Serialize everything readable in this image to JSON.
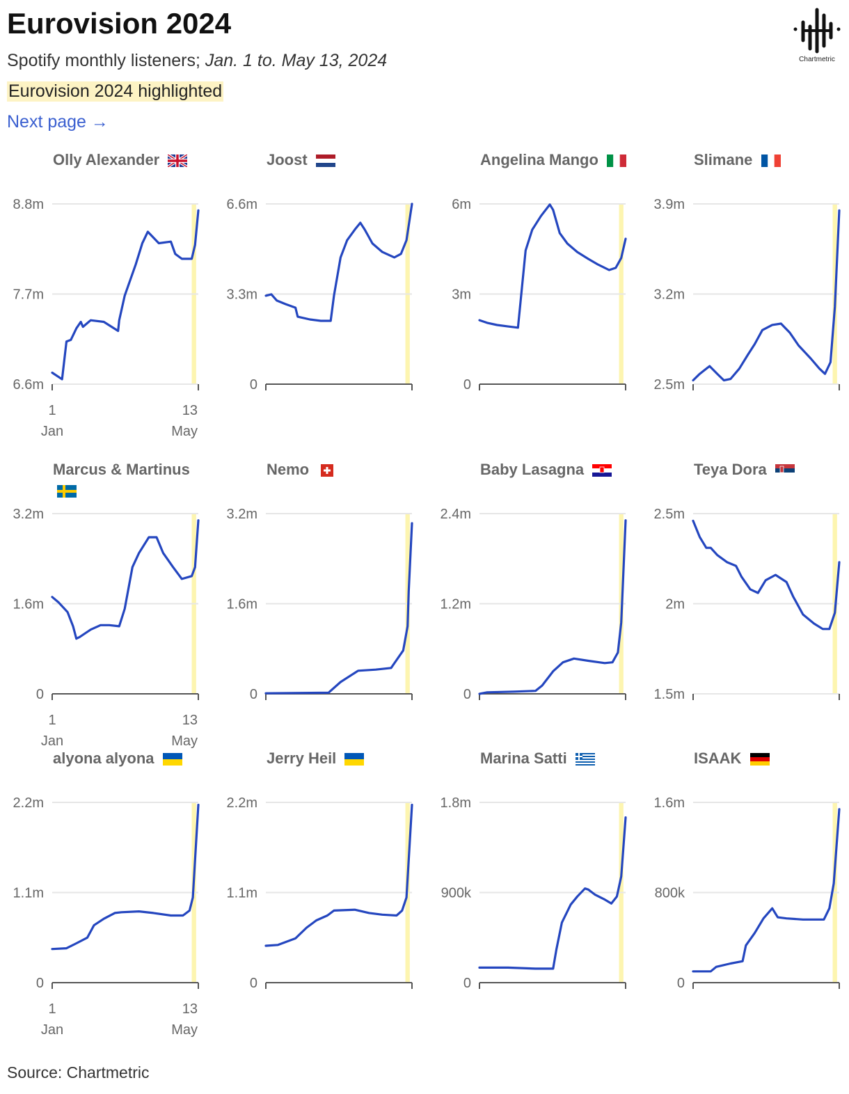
{
  "header": {
    "title": "Eurovision 2024",
    "subtitle_prefix": "Spotify monthly listeners;",
    "subtitle_dates": "Jan. 1 to. May 13, 2024",
    "highlight_note": "Eurovision 2024 highlighted",
    "next_page": "Next page →"
  },
  "logo": {
    "text": "Chartmetric",
    "icon": "chartmetric-waveform-logo"
  },
  "footer": {
    "source": "Source: Chartmetric"
  },
  "colors": {
    "line": "#2446bf",
    "highlight": "#fdf5b0",
    "grid": "#e6e6e6",
    "axis": "#555555",
    "title": "#666666"
  },
  "chart_data": {
    "type": "line",
    "layout": "small-multiples 4 columns x 3 rows",
    "x_range": [
      "2024-01-01",
      "2024-05-13"
    ],
    "x_tick_labels": [
      {
        "day": "1",
        "month": "Jan"
      },
      {
        "day": "13",
        "month": "May"
      }
    ],
    "highlight_range": [
      "2024-05-07",
      "2024-05-11"
    ],
    "grid": true,
    "panels": [
      {
        "name": "Olly Alexander",
        "flag": "GB",
        "ylim": [
          6.6,
          8.8
        ],
        "yticks": [
          "6.6m",
          "7.7m",
          "8.8m"
        ],
        "points": [
          [
            "2024-01-01",
            6.74
          ],
          [
            "2024-01-10",
            6.66
          ],
          [
            "2024-01-14",
            7.12
          ],
          [
            "2024-01-18",
            7.14
          ],
          [
            "2024-01-23",
            7.28
          ],
          [
            "2024-01-27",
            7.36
          ],
          [
            "2024-01-29",
            7.3
          ],
          [
            "2024-02-05",
            7.38
          ],
          [
            "2024-02-17",
            7.36
          ],
          [
            "2024-03-01",
            7.25
          ],
          [
            "2024-03-02",
            7.38
          ],
          [
            "2024-03-07",
            7.68
          ],
          [
            "2024-03-17",
            8.06
          ],
          [
            "2024-03-23",
            8.32
          ],
          [
            "2024-03-28",
            8.46
          ],
          [
            "2024-04-07",
            8.32
          ],
          [
            "2024-04-18",
            8.34
          ],
          [
            "2024-04-22",
            8.19
          ],
          [
            "2024-04-28",
            8.13
          ],
          [
            "2024-05-07",
            8.13
          ],
          [
            "2024-05-10",
            8.3
          ],
          [
            "2024-05-13",
            8.72
          ]
        ]
      },
      {
        "name": "Joost",
        "flag": "NL",
        "ylim": [
          0,
          6.6
        ],
        "yticks": [
          "0",
          "3.3m",
          "6.6m"
        ],
        "points": [
          [
            "2024-01-01",
            3.24
          ],
          [
            "2024-01-06",
            3.29
          ],
          [
            "2024-01-11",
            3.06
          ],
          [
            "2024-01-19",
            2.93
          ],
          [
            "2024-01-28",
            2.8
          ],
          [
            "2024-01-30",
            2.47
          ],
          [
            "2024-02-10",
            2.37
          ],
          [
            "2024-02-20",
            2.32
          ],
          [
            "2024-02-29",
            2.32
          ],
          [
            "2024-03-03",
            3.24
          ],
          [
            "2024-03-09",
            4.64
          ],
          [
            "2024-03-15",
            5.27
          ],
          [
            "2024-03-22",
            5.66
          ],
          [
            "2024-03-27",
            5.91
          ],
          [
            "2024-03-31",
            5.66
          ],
          [
            "2024-04-07",
            5.15
          ],
          [
            "2024-04-16",
            4.84
          ],
          [
            "2024-04-27",
            4.64
          ],
          [
            "2024-05-03",
            4.77
          ],
          [
            "2024-05-08",
            5.27
          ],
          [
            "2024-05-13",
            6.6
          ]
        ]
      },
      {
        "name": "Angelina Mango",
        "flag": "IT",
        "ylim": [
          0,
          6
        ],
        "yticks": [
          "0",
          "3m",
          "6m"
        ],
        "points": [
          [
            "2024-01-01",
            2.13
          ],
          [
            "2024-01-08",
            2.04
          ],
          [
            "2024-01-17",
            1.97
          ],
          [
            "2024-01-27",
            1.92
          ],
          [
            "2024-02-05",
            1.88
          ],
          [
            "2024-02-07",
            2.6
          ],
          [
            "2024-02-12",
            4.45
          ],
          [
            "2024-02-18",
            5.14
          ],
          [
            "2024-02-26",
            5.6
          ],
          [
            "2024-03-05",
            5.98
          ],
          [
            "2024-03-08",
            5.8
          ],
          [
            "2024-03-14",
            5.03
          ],
          [
            "2024-03-21",
            4.68
          ],
          [
            "2024-03-30",
            4.4
          ],
          [
            "2024-04-09",
            4.17
          ],
          [
            "2024-04-18",
            3.98
          ],
          [
            "2024-04-28",
            3.8
          ],
          [
            "2024-05-04",
            3.87
          ],
          [
            "2024-05-09",
            4.2
          ],
          [
            "2024-05-13",
            4.84
          ]
        ]
      },
      {
        "name": "Slimane",
        "flag": "FR",
        "ylim": [
          2.5,
          3.9
        ],
        "yticks": [
          "2.5m",
          "3.2m",
          "3.9m"
        ],
        "points": [
          [
            "2024-01-01",
            2.53
          ],
          [
            "2024-01-07",
            2.58
          ],
          [
            "2024-01-16",
            2.64
          ],
          [
            "2024-01-23",
            2.58
          ],
          [
            "2024-01-29",
            2.53
          ],
          [
            "2024-02-04",
            2.54
          ],
          [
            "2024-02-12",
            2.62
          ],
          [
            "2024-02-20",
            2.73
          ],
          [
            "2024-02-26",
            2.81
          ],
          [
            "2024-03-04",
            2.92
          ],
          [
            "2024-03-13",
            2.96
          ],
          [
            "2024-03-21",
            2.97
          ],
          [
            "2024-03-29",
            2.9
          ],
          [
            "2024-04-06",
            2.8
          ],
          [
            "2024-04-17",
            2.7
          ],
          [
            "2024-04-25",
            2.62
          ],
          [
            "2024-04-30",
            2.58
          ],
          [
            "2024-05-05",
            2.67
          ],
          [
            "2024-05-09",
            3.1
          ],
          [
            "2024-05-13",
            3.85
          ]
        ]
      },
      {
        "name": "Marcus & Martinus",
        "flag": "SE",
        "ylim": [
          0,
          3.2
        ],
        "yticks": [
          "0",
          "1.6m",
          "3.2m"
        ],
        "points": [
          [
            "2024-01-01",
            1.72
          ],
          [
            "2024-01-07",
            1.62
          ],
          [
            "2024-01-15",
            1.45
          ],
          [
            "2024-01-20",
            1.2
          ],
          [
            "2024-01-23",
            0.98
          ],
          [
            "2024-01-26",
            1.01
          ],
          [
            "2024-02-05",
            1.14
          ],
          [
            "2024-02-14",
            1.22
          ],
          [
            "2024-02-22",
            1.22
          ],
          [
            "2024-03-02",
            1.2
          ],
          [
            "2024-03-07",
            1.51
          ],
          [
            "2024-03-14",
            2.25
          ],
          [
            "2024-03-20",
            2.5
          ],
          [
            "2024-03-29",
            2.78
          ],
          [
            "2024-04-05",
            2.78
          ],
          [
            "2024-04-11",
            2.5
          ],
          [
            "2024-04-20",
            2.25
          ],
          [
            "2024-04-28",
            2.04
          ],
          [
            "2024-05-07",
            2.09
          ],
          [
            "2024-05-10",
            2.25
          ],
          [
            "2024-05-13",
            3.08
          ]
        ]
      },
      {
        "name": "Nemo",
        "flag": "CH",
        "ylim": [
          0,
          3.2
        ],
        "yticks": [
          "0",
          "1.6m",
          "3.2m"
        ],
        "points": [
          [
            "2024-01-01",
            0.01
          ],
          [
            "2024-02-27",
            0.02
          ],
          [
            "2024-03-09",
            0.21
          ],
          [
            "2024-03-25",
            0.41
          ],
          [
            "2024-04-10",
            0.43
          ],
          [
            "2024-04-24",
            0.46
          ],
          [
            "2024-04-29",
            0.6
          ],
          [
            "2024-05-05",
            0.77
          ],
          [
            "2024-05-09",
            1.2
          ],
          [
            "2024-05-10",
            1.82
          ],
          [
            "2024-05-13",
            3.03
          ]
        ]
      },
      {
        "name": "Baby Lasagna",
        "flag": "HR",
        "ylim": [
          0,
          2.4
        ],
        "yticks": [
          "0",
          "1.2m",
          "2.4m"
        ],
        "points": [
          [
            "2024-01-01",
            0.0
          ],
          [
            "2024-01-08",
            0.02
          ],
          [
            "2024-02-02",
            0.03
          ],
          [
            "2024-02-21",
            0.04
          ],
          [
            "2024-02-27",
            0.11
          ],
          [
            "2024-03-08",
            0.3
          ],
          [
            "2024-03-17",
            0.42
          ],
          [
            "2024-03-27",
            0.47
          ],
          [
            "2024-04-09",
            0.44
          ],
          [
            "2024-04-24",
            0.41
          ],
          [
            "2024-05-01",
            0.42
          ],
          [
            "2024-05-06",
            0.55
          ],
          [
            "2024-05-09",
            0.95
          ],
          [
            "2024-05-13",
            2.31
          ]
        ]
      },
      {
        "name": "Teya Dora",
        "flag": "RS",
        "ylim": [
          1.5,
          2.5
        ],
        "yticks": [
          "1.5m",
          "2m",
          "2.5m"
        ],
        "points": [
          [
            "2024-01-01",
            2.46
          ],
          [
            "2024-01-07",
            2.37
          ],
          [
            "2024-01-13",
            2.31
          ],
          [
            "2024-01-17",
            2.31
          ],
          [
            "2024-01-23",
            2.27
          ],
          [
            "2024-02-01",
            2.23
          ],
          [
            "2024-02-09",
            2.21
          ],
          [
            "2024-02-14",
            2.15
          ],
          [
            "2024-02-22",
            2.08
          ],
          [
            "2024-02-29",
            2.06
          ],
          [
            "2024-03-07",
            2.13
          ],
          [
            "2024-03-16",
            2.16
          ],
          [
            "2024-03-26",
            2.12
          ],
          [
            "2024-04-01",
            2.04
          ],
          [
            "2024-04-10",
            1.94
          ],
          [
            "2024-04-20",
            1.89
          ],
          [
            "2024-04-28",
            1.86
          ],
          [
            "2024-05-04",
            1.86
          ],
          [
            "2024-05-09",
            1.95
          ],
          [
            "2024-05-13",
            2.23
          ]
        ]
      },
      {
        "name": "alyona alyona",
        "flag": "UA",
        "ylim": [
          0,
          2.2
        ],
        "yticks": [
          "0",
          "1.1m",
          "2.2m"
        ],
        "points": [
          [
            "2024-01-01",
            0.41
          ],
          [
            "2024-01-14",
            0.42
          ],
          [
            "2024-01-23",
            0.48
          ],
          [
            "2024-02-02",
            0.55
          ],
          [
            "2024-02-08",
            0.7
          ],
          [
            "2024-02-17",
            0.78
          ],
          [
            "2024-02-27",
            0.85
          ],
          [
            "2024-03-04",
            0.86
          ],
          [
            "2024-03-20",
            0.87
          ],
          [
            "2024-04-02",
            0.85
          ],
          [
            "2024-04-18",
            0.82
          ],
          [
            "2024-04-29",
            0.82
          ],
          [
            "2024-05-05",
            0.88
          ],
          [
            "2024-05-08",
            1.04
          ],
          [
            "2024-05-13",
            2.17
          ]
        ]
      },
      {
        "name": "Jerry Heil",
        "flag": "UA",
        "ylim": [
          0,
          2.2
        ],
        "yticks": [
          "0",
          "1.1m",
          "2.2m"
        ],
        "points": [
          [
            "2024-01-01",
            0.45
          ],
          [
            "2024-01-12",
            0.46
          ],
          [
            "2024-01-28",
            0.54
          ],
          [
            "2024-02-07",
            0.67
          ],
          [
            "2024-02-16",
            0.76
          ],
          [
            "2024-02-26",
            0.82
          ],
          [
            "2024-03-03",
            0.88
          ],
          [
            "2024-03-22",
            0.89
          ],
          [
            "2024-04-04",
            0.85
          ],
          [
            "2024-04-16",
            0.83
          ],
          [
            "2024-04-29",
            0.82
          ],
          [
            "2024-05-04",
            0.88
          ],
          [
            "2024-05-08",
            1.04
          ],
          [
            "2024-05-13",
            2.17
          ]
        ]
      },
      {
        "name": "Marina Satti",
        "flag": "GR",
        "ylim": [
          0,
          1.8
        ],
        "yticks": [
          "0",
          "900k",
          "1.8m"
        ],
        "points": [
          [
            "2024-01-01",
            0.15
          ],
          [
            "2024-01-27",
            0.15
          ],
          [
            "2024-02-21",
            0.14
          ],
          [
            "2024-03-08",
            0.14
          ],
          [
            "2024-03-11",
            0.33
          ],
          [
            "2024-03-16",
            0.6
          ],
          [
            "2024-03-24",
            0.78
          ],
          [
            "2024-03-30",
            0.86
          ],
          [
            "2024-04-06",
            0.94
          ],
          [
            "2024-04-09",
            0.93
          ],
          [
            "2024-04-15",
            0.88
          ],
          [
            "2024-04-24",
            0.83
          ],
          [
            "2024-04-30",
            0.79
          ],
          [
            "2024-05-05",
            0.86
          ],
          [
            "2024-05-09",
            1.06
          ],
          [
            "2024-05-13",
            1.65
          ]
        ]
      },
      {
        "name": "ISAAK",
        "flag": "DE",
        "ylim": [
          0,
          1.6
        ],
        "yticks": [
          "0",
          "800k",
          "1.6m"
        ],
        "points": [
          [
            "2024-01-01",
            0.1
          ],
          [
            "2024-01-17",
            0.1
          ],
          [
            "2024-01-22",
            0.14
          ],
          [
            "2024-02-04",
            0.17
          ],
          [
            "2024-02-15",
            0.19
          ],
          [
            "2024-02-18",
            0.33
          ],
          [
            "2024-02-26",
            0.44
          ],
          [
            "2024-03-05",
            0.57
          ],
          [
            "2024-03-13",
            0.66
          ],
          [
            "2024-03-18",
            0.58
          ],
          [
            "2024-03-26",
            0.57
          ],
          [
            "2024-04-10",
            0.56
          ],
          [
            "2024-04-29",
            0.56
          ],
          [
            "2024-05-04",
            0.66
          ],
          [
            "2024-05-08",
            0.88
          ],
          [
            "2024-05-13",
            1.54
          ]
        ]
      }
    ]
  }
}
